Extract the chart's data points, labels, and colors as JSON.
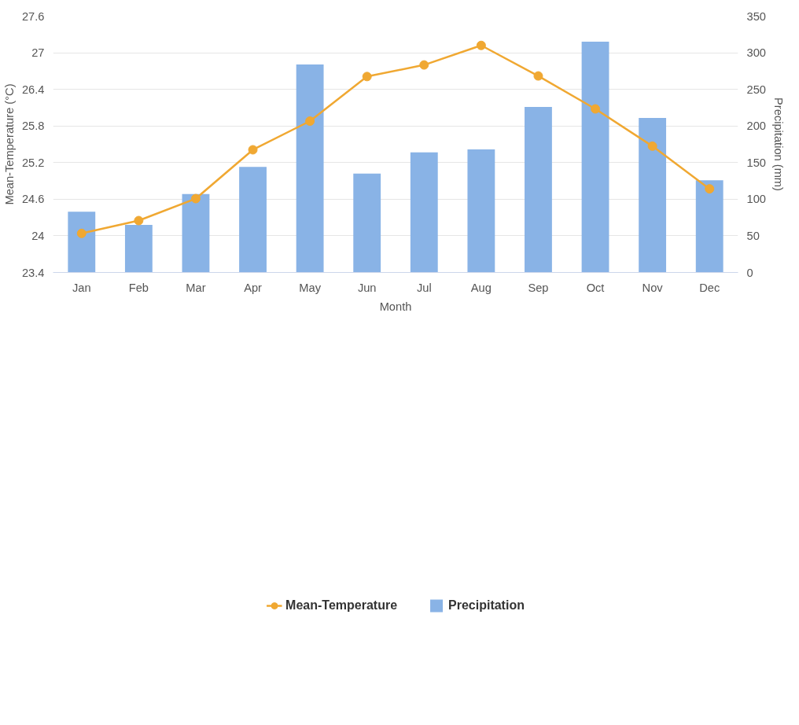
{
  "chart_data": {
    "type": "bar",
    "xlabel": "Month",
    "ylabel": "Mean-Temperature (°C)",
    "y2label": "Precipitation (mm)",
    "categories": [
      "Jan",
      "Feb",
      "Mar",
      "Apr",
      "May",
      "Jun",
      "Jul",
      "Aug",
      "Sep",
      "Oct",
      "Nov",
      "Dec"
    ],
    "series": [
      {
        "name": "Mean-Temperature",
        "type": "line",
        "color": "#f0a832",
        "values": [
          24.04,
          24.25,
          24.61,
          25.41,
          25.88,
          26.61,
          26.8,
          27.12,
          26.62,
          26.08,
          25.47,
          24.77
        ]
      },
      {
        "name": "Precipitation",
        "axis": "y2",
        "color": "#89b3e6",
        "values": [
          83,
          65,
          107,
          144,
          284,
          135,
          164,
          168,
          226,
          315,
          211,
          126
        ]
      }
    ],
    "ylim": [
      23.4,
      27.6
    ],
    "yticks": [
      23.4,
      24,
      24.6,
      25.2,
      25.8,
      26.4,
      27,
      27.6
    ],
    "y2lim": [
      0,
      350
    ],
    "y2ticks": [
      0,
      50,
      100,
      150,
      200,
      250,
      300,
      350
    ],
    "grid": "y",
    "legend": "bottom",
    "marker": "circle"
  }
}
